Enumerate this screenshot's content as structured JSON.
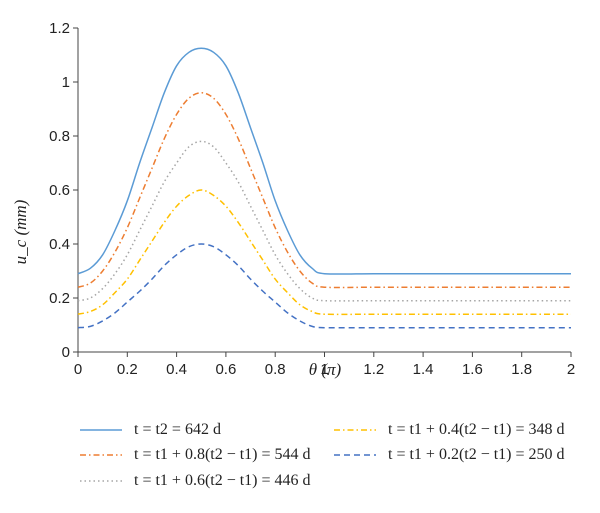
{
  "chart_data": {
    "type": "line",
    "xlabel": "θ (π)",
    "ylabel": "u_c (mm)",
    "xlim": [
      0,
      2
    ],
    "ylim": [
      0,
      1.2
    ],
    "x_ticks": [
      "0",
      "0.2",
      "0.4",
      "0.6",
      "0.8",
      "1",
      "1.2",
      "1.4",
      "1.6",
      "1.8",
      "2"
    ],
    "y_ticks": [
      "0",
      "0.2",
      "0.4",
      "0.6",
      "0.8",
      "1",
      "1.2"
    ],
    "grid": false,
    "legend_position": "bottom",
    "x": [
      0,
      0.05,
      0.1,
      0.15,
      0.2,
      0.25,
      0.3,
      0.35,
      0.4,
      0.45,
      0.5,
      0.55,
      0.6,
      0.65,
      0.7,
      0.75,
      0.8,
      0.85,
      0.9,
      0.95,
      1.0,
      1.2,
      1.4,
      1.6,
      1.8,
      2.0
    ],
    "series": [
      {
        "name": "t = t2 = 642 d",
        "color": "#5b9bd5",
        "dash": "solid",
        "values": [
          0.29,
          0.31,
          0.36,
          0.45,
          0.56,
          0.7,
          0.83,
          0.96,
          1.06,
          1.11,
          1.125,
          1.11,
          1.06,
          0.96,
          0.83,
          0.7,
          0.56,
          0.45,
          0.36,
          0.31,
          0.29,
          0.29,
          0.29,
          0.29,
          0.29,
          0.29
        ]
      },
      {
        "name": "t = t1 + 0.8(t2 − t1) = 544 d",
        "color": "#ed7d31",
        "dash": "dashdot",
        "values": [
          0.24,
          0.255,
          0.3,
          0.37,
          0.46,
          0.57,
          0.68,
          0.79,
          0.88,
          0.94,
          0.96,
          0.94,
          0.88,
          0.79,
          0.68,
          0.57,
          0.46,
          0.37,
          0.3,
          0.255,
          0.24,
          0.24,
          0.24,
          0.24,
          0.24,
          0.24
        ]
      },
      {
        "name": "t = t1 + 0.6(t2 − t1) = 446 d",
        "color": "#a5a5a5",
        "dash": "dotted",
        "values": [
          0.19,
          0.2,
          0.235,
          0.29,
          0.36,
          0.45,
          0.54,
          0.63,
          0.7,
          0.76,
          0.78,
          0.76,
          0.7,
          0.63,
          0.54,
          0.45,
          0.36,
          0.29,
          0.235,
          0.2,
          0.19,
          0.19,
          0.19,
          0.19,
          0.19,
          0.19
        ]
      },
      {
        "name": "t = t1 + 0.4(t2 − t1) = 348 d",
        "color": "#ffc000",
        "dash": "dashdot",
        "values": [
          0.14,
          0.15,
          0.175,
          0.22,
          0.27,
          0.34,
          0.41,
          0.48,
          0.54,
          0.58,
          0.6,
          0.58,
          0.54,
          0.48,
          0.41,
          0.34,
          0.27,
          0.22,
          0.175,
          0.15,
          0.14,
          0.14,
          0.14,
          0.14,
          0.14,
          0.14
        ]
      },
      {
        "name": "t = t1 + 0.2(t2 − t1) = 250 d",
        "color": "#4472c4",
        "dash": "dashed",
        "values": [
          0.09,
          0.095,
          0.115,
          0.145,
          0.185,
          0.225,
          0.27,
          0.32,
          0.36,
          0.39,
          0.4,
          0.39,
          0.36,
          0.32,
          0.27,
          0.225,
          0.185,
          0.145,
          0.115,
          0.095,
          0.09,
          0.09,
          0.09,
          0.09,
          0.09,
          0.09
        ]
      }
    ]
  }
}
